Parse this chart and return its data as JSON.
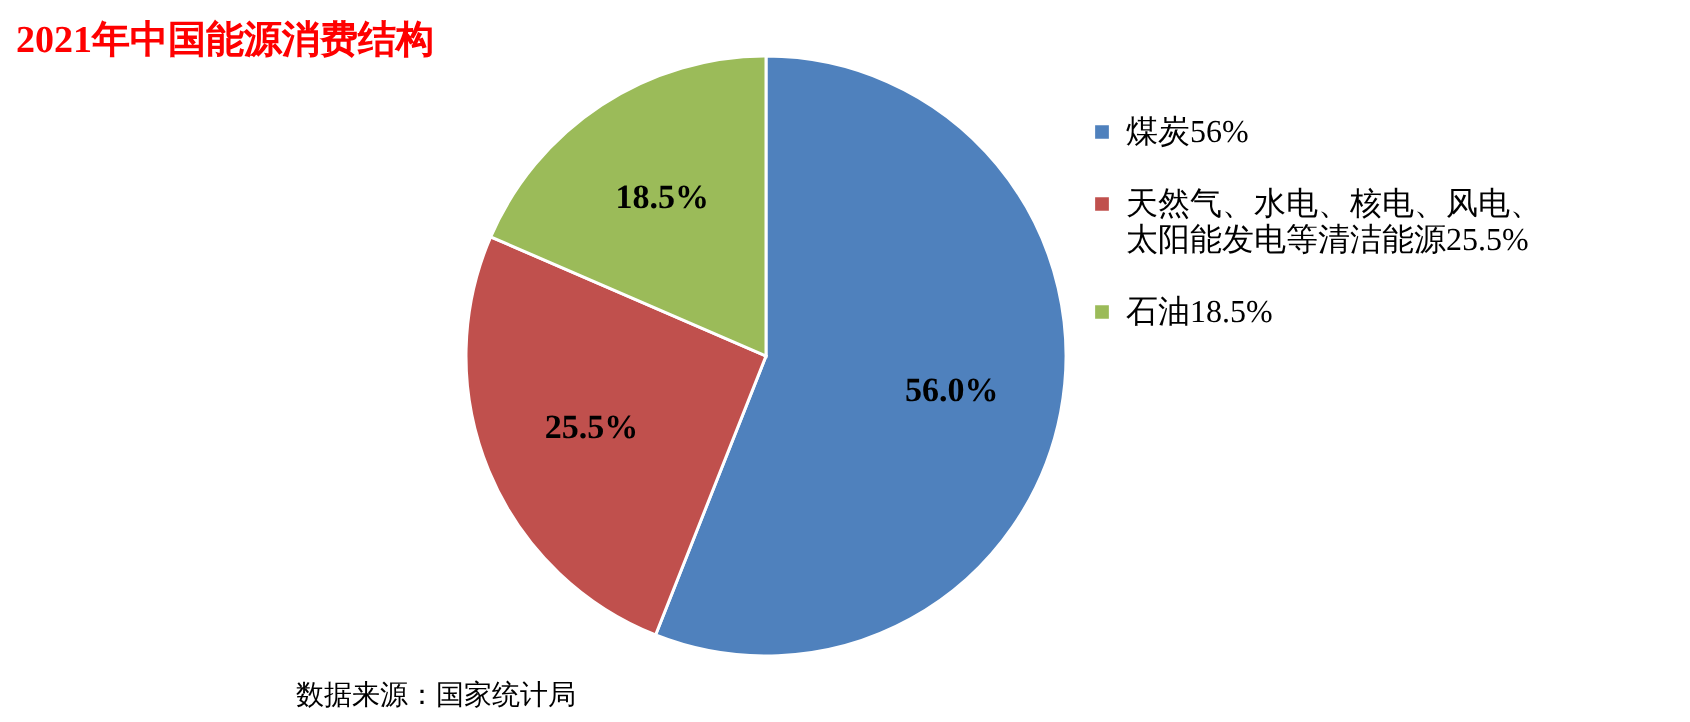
{
  "chart_data": {
    "type": "pie",
    "title": "2021年中国能源消费结构",
    "categories": [
      "煤炭56%",
      "天然气、水电、核电、风电、太阳能发电等清洁能源25.5%",
      "石油18.5%"
    ],
    "values": [
      56,
      25.5,
      18.5
    ],
    "colors": [
      "#4f81bd",
      "#c0504d",
      "#9bbb59"
    ],
    "value_labels": [
      "56.0%",
      "25.5%",
      "18.5%"
    ],
    "legend": "right",
    "annotations": [
      "数据来源：国家统计局"
    ]
  }
}
